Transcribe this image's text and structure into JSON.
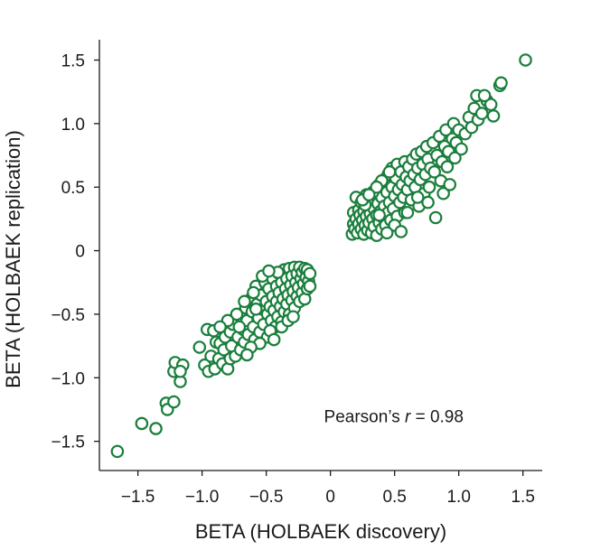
{
  "chart_data": {
    "type": "scatter",
    "xlabel": "BETA (HOLBAEK discovery)",
    "ylabel": "BETA (HOLBAEK replication)",
    "xlim": [
      -1.8,
      1.65
    ],
    "ylim": [
      -1.73,
      1.66
    ],
    "x_ticks": [
      -1.5,
      -1.0,
      -0.5,
      0,
      0.5,
      1.0,
      1.5
    ],
    "x_tick_labels": [
      "−1.5",
      "−1.0",
      "−0.5",
      "0",
      "0.5",
      "1.0",
      "1.5"
    ],
    "y_ticks": [
      -1.5,
      -1.0,
      -0.5,
      0,
      0.5,
      1.0,
      1.5
    ],
    "y_tick_labels": [
      "−1.5",
      "−1.0",
      "−0.5",
      "0",
      "0.5",
      "1.0",
      "1.5"
    ],
    "grid": false,
    "marker_color": "#1a7f3c",
    "annotation": {
      "prefix": "Pearson’s ",
      "symbol": "r",
      "suffix": " = 0.98",
      "x": -0.05,
      "y": -1.35
    },
    "series": [
      {
        "points": [
          [
            -1.66,
            -1.58
          ],
          [
            -1.47,
            -1.36
          ],
          [
            -1.36,
            -1.4
          ],
          [
            -1.28,
            -1.2
          ],
          [
            -1.27,
            -1.25
          ],
          [
            -1.22,
            -1.19
          ],
          [
            -1.22,
            -0.95
          ],
          [
            -1.21,
            -0.88
          ],
          [
            -1.17,
            -1.03
          ],
          [
            -1.15,
            -0.9
          ],
          [
            -1.17,
            -0.95
          ],
          [
            -1.02,
            -0.76
          ],
          [
            -0.98,
            -0.9
          ],
          [
            -0.96,
            -0.62
          ],
          [
            -0.95,
            -0.95
          ],
          [
            -0.93,
            -0.83
          ],
          [
            -0.91,
            -0.63
          ],
          [
            -0.9,
            -0.93
          ],
          [
            -0.89,
            -0.72
          ],
          [
            -0.87,
            -0.85
          ],
          [
            -0.86,
            -0.73
          ],
          [
            -0.84,
            -0.89
          ],
          [
            -0.83,
            -0.78
          ],
          [
            -0.82,
            -0.68
          ],
          [
            -0.8,
            -0.93
          ],
          [
            -0.78,
            -0.64
          ],
          [
            -0.78,
            -0.85
          ],
          [
            -0.77,
            -0.75
          ],
          [
            -0.76,
            -0.58
          ],
          [
            -0.74,
            -0.83
          ],
          [
            -0.72,
            -0.68
          ],
          [
            -0.7,
            -0.78
          ],
          [
            -0.7,
            -0.52
          ],
          [
            -0.68,
            -0.62
          ],
          [
            -0.67,
            -0.72
          ],
          [
            -0.66,
            -0.45
          ],
          [
            -0.65,
            -0.55
          ],
          [
            -0.64,
            -0.66
          ],
          [
            -0.62,
            -0.38
          ],
          [
            -0.61,
            -0.48
          ],
          [
            -0.6,
            -0.6
          ],
          [
            -0.59,
            -0.7
          ],
          [
            -0.58,
            -0.28
          ],
          [
            -0.57,
            -0.42
          ],
          [
            -0.56,
            -0.53
          ],
          [
            -0.55,
            -0.64
          ],
          [
            -0.54,
            -0.35
          ],
          [
            -0.53,
            -0.46
          ],
          [
            -0.52,
            -0.58
          ],
          [
            -0.51,
            -0.25
          ],
          [
            -0.5,
            -0.4
          ],
          [
            -0.49,
            -0.5
          ],
          [
            -0.49,
            -0.68
          ],
          [
            -0.48,
            -0.3
          ],
          [
            -0.47,
            -0.44
          ],
          [
            -0.46,
            -0.55
          ],
          [
            -0.45,
            -0.22
          ],
          [
            -0.45,
            -0.36
          ],
          [
            -0.44,
            -0.47
          ],
          [
            -0.43,
            -0.6
          ],
          [
            -0.42,
            -0.28
          ],
          [
            -0.42,
            -0.4
          ],
          [
            -0.41,
            -0.52
          ],
          [
            -0.4,
            -0.18
          ],
          [
            -0.4,
            -0.33
          ],
          [
            -0.39,
            -0.44
          ],
          [
            -0.38,
            -0.25
          ],
          [
            -0.38,
            -0.56
          ],
          [
            -0.37,
            -0.38
          ],
          [
            -0.36,
            -0.48
          ],
          [
            -0.36,
            -0.15
          ],
          [
            -0.35,
            -0.3
          ],
          [
            -0.34,
            -0.42
          ],
          [
            -0.34,
            -0.22
          ],
          [
            -0.33,
            -0.35
          ],
          [
            -0.32,
            -0.5
          ],
          [
            -0.32,
            -0.14
          ],
          [
            -0.31,
            -0.27
          ],
          [
            -0.3,
            -0.39
          ],
          [
            -0.3,
            -0.2
          ],
          [
            -0.29,
            -0.32
          ],
          [
            -0.28,
            -0.45
          ],
          [
            -0.28,
            -0.13
          ],
          [
            -0.27,
            -0.25
          ],
          [
            -0.26,
            -0.36
          ],
          [
            -0.26,
            -0.18
          ],
          [
            -0.25,
            -0.29
          ],
          [
            -0.24,
            -0.4
          ],
          [
            -0.24,
            -0.13
          ],
          [
            -0.23,
            -0.22
          ],
          [
            -0.22,
            -0.33
          ],
          [
            -0.22,
            -0.17
          ],
          [
            -0.21,
            -0.26
          ],
          [
            -0.2,
            -0.14
          ],
          [
            -0.2,
            -0.38
          ],
          [
            -0.19,
            -0.21
          ],
          [
            -0.18,
            -0.3
          ],
          [
            -0.18,
            -0.15
          ],
          [
            -0.17,
            -0.24
          ],
          [
            -0.16,
            -0.18
          ],
          [
            -0.16,
            -0.28
          ],
          [
            -0.55,
            -0.73
          ],
          [
            -0.62,
            -0.76
          ],
          [
            -0.47,
            -0.63
          ],
          [
            -0.44,
            -0.7
          ],
          [
            -0.58,
            -0.46
          ],
          [
            -0.53,
            -0.2
          ],
          [
            -0.6,
            -0.33
          ],
          [
            -0.67,
            -0.4
          ],
          [
            -0.73,
            -0.5
          ],
          [
            -0.38,
            -0.6
          ],
          [
            -0.33,
            -0.55
          ],
          [
            -0.29,
            -0.52
          ],
          [
            -0.71,
            -0.6
          ],
          [
            -0.65,
            -0.82
          ],
          [
            -0.8,
            -0.55
          ],
          [
            -0.86,
            -0.6
          ],
          [
            -0.41,
            -0.17
          ],
          [
            -0.48,
            -0.16
          ],
          [
            0.17,
            0.13
          ],
          [
            0.18,
            0.21
          ],
          [
            0.18,
            0.3
          ],
          [
            0.19,
            0.17
          ],
          [
            0.2,
            0.25
          ],
          [
            0.2,
            0.42
          ],
          [
            0.21,
            0.14
          ],
          [
            0.22,
            0.32
          ],
          [
            0.22,
            0.21
          ],
          [
            0.23,
            0.28
          ],
          [
            0.24,
            0.17
          ],
          [
            0.24,
            0.38
          ],
          [
            0.25,
            0.24
          ],
          [
            0.26,
            0.13
          ],
          [
            0.26,
            0.31
          ],
          [
            0.27,
            0.2
          ],
          [
            0.28,
            0.44
          ],
          [
            0.28,
            0.27
          ],
          [
            0.29,
            0.16
          ],
          [
            0.3,
            0.35
          ],
          [
            0.3,
            0.22
          ],
          [
            0.31,
            0.29
          ],
          [
            0.32,
            0.14
          ],
          [
            0.32,
            0.4
          ],
          [
            0.33,
            0.25
          ],
          [
            0.34,
            0.19
          ],
          [
            0.34,
            0.33
          ],
          [
            0.35,
            0.47
          ],
          [
            0.36,
            0.28
          ],
          [
            0.36,
            0.12
          ],
          [
            0.37,
            0.37
          ],
          [
            0.38,
            0.22
          ],
          [
            0.38,
            0.52
          ],
          [
            0.39,
            0.31
          ],
          [
            0.4,
            0.17
          ],
          [
            0.4,
            0.42
          ],
          [
            0.41,
            0.26
          ],
          [
            0.42,
            0.56
          ],
          [
            0.42,
            0.35
          ],
          [
            0.43,
            0.2
          ],
          [
            0.44,
            0.46
          ],
          [
            0.45,
            0.3
          ],
          [
            0.45,
            0.6
          ],
          [
            0.46,
            0.38
          ],
          [
            0.47,
            0.24
          ],
          [
            0.48,
            0.5
          ],
          [
            0.48,
            0.65
          ],
          [
            0.49,
            0.33
          ],
          [
            0.5,
            0.43
          ],
          [
            0.51,
            0.57
          ],
          [
            0.52,
            0.27
          ],
          [
            0.52,
            0.68
          ],
          [
            0.53,
            0.48
          ],
          [
            0.54,
            0.38
          ],
          [
            0.55,
            0.62
          ],
          [
            0.56,
            0.52
          ],
          [
            0.57,
            0.42
          ],
          [
            0.58,
            0.7
          ],
          [
            0.58,
            0.3
          ],
          [
            0.59,
            0.58
          ],
          [
            0.6,
            0.48
          ],
          [
            0.61,
            0.66
          ],
          [
            0.62,
            0.55
          ],
          [
            0.63,
            0.4
          ],
          [
            0.64,
            0.72
          ],
          [
            0.65,
            0.6
          ],
          [
            0.66,
            0.5
          ],
          [
            0.67,
            0.76
          ],
          [
            0.68,
            0.65
          ],
          [
            0.69,
            0.35
          ],
          [
            0.7,
            0.56
          ],
          [
            0.71,
            0.78
          ],
          [
            0.72,
            0.68
          ],
          [
            0.73,
            0.45
          ],
          [
            0.74,
            0.6
          ],
          [
            0.75,
            0.82
          ],
          [
            0.76,
            0.72
          ],
          [
            0.77,
            0.5
          ],
          [
            0.78,
            0.65
          ],
          [
            0.8,
            0.85
          ],
          [
            0.81,
            0.62
          ],
          [
            0.82,
            0.26
          ],
          [
            0.83,
            0.75
          ],
          [
            0.85,
            0.9
          ],
          [
            0.86,
            0.55
          ],
          [
            0.87,
            0.7
          ],
          [
            0.88,
            0.45
          ],
          [
            0.89,
            0.82
          ],
          [
            0.9,
            0.95
          ],
          [
            0.91,
            0.66
          ],
          [
            0.92,
            0.78
          ],
          [
            0.93,
            0.52
          ],
          [
            0.95,
            0.88
          ],
          [
            0.96,
            1.0
          ],
          [
            0.97,
            0.73
          ],
          [
            0.98,
            0.85
          ],
          [
            1.0,
            0.95
          ],
          [
            1.02,
            0.8
          ],
          [
            1.05,
            0.92
          ],
          [
            1.08,
            1.05
          ],
          [
            1.1,
            0.97
          ],
          [
            1.12,
            1.12
          ],
          [
            1.15,
            1.03
          ],
          [
            1.18,
            1.08
          ],
          [
            1.22,
            1.18
          ],
          [
            1.25,
            1.15
          ],
          [
            1.27,
            1.06
          ],
          [
            1.32,
            1.3
          ],
          [
            1.33,
            1.32
          ],
          [
            1.52,
            1.5
          ],
          [
            1.14,
            1.22
          ],
          [
            1.2,
            1.22
          ],
          [
            0.6,
            0.3
          ],
          [
            0.68,
            0.42
          ],
          [
            0.76,
            0.38
          ],
          [
            0.5,
            0.2
          ],
          [
            0.44,
            0.14
          ],
          [
            0.38,
            0.28
          ],
          [
            0.55,
            0.15
          ],
          [
            0.27,
            0.36
          ],
          [
            0.33,
            0.46
          ],
          [
            0.4,
            0.55
          ],
          [
            0.36,
            0.5
          ],
          [
            0.46,
            0.62
          ],
          [
            0.25,
            0.4
          ],
          [
            0.3,
            0.44
          ]
        ]
      }
    ]
  }
}
